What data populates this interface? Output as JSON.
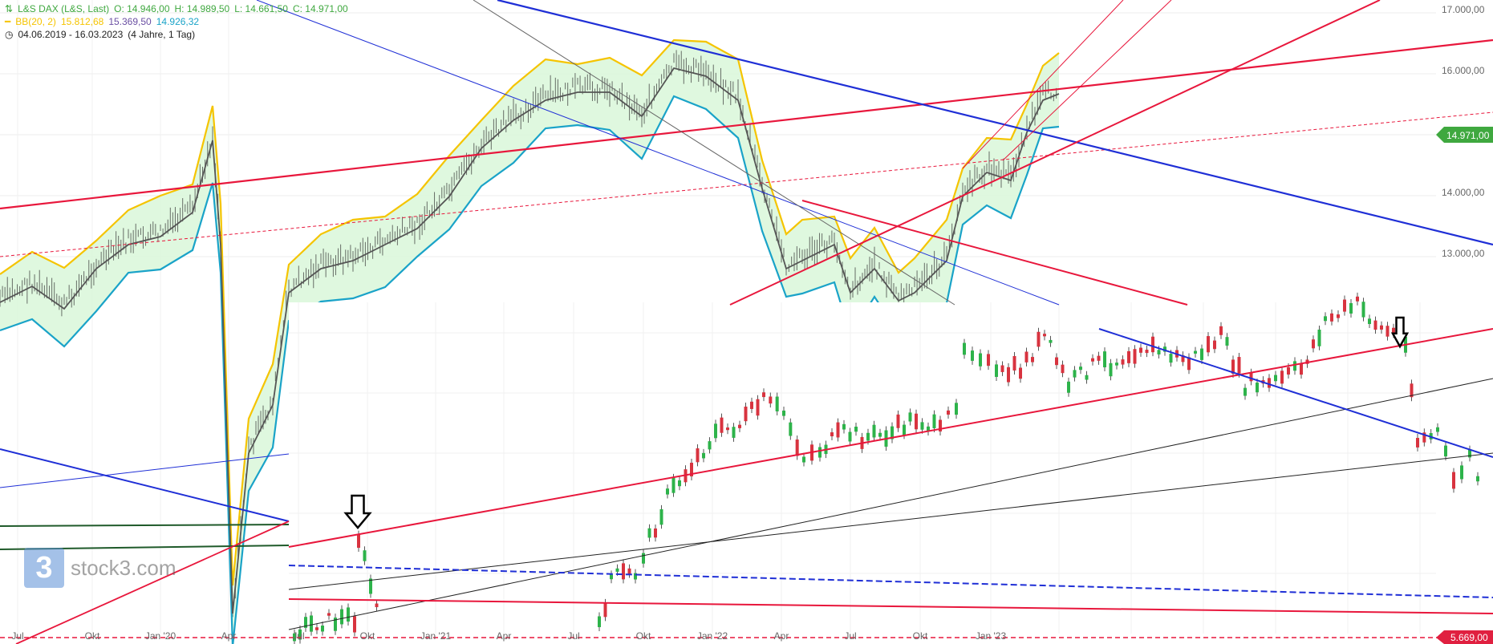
{
  "header": {
    "instrument": "L&S DAX (L&S, Last)",
    "open": "O: 14.946,00",
    "high": "H: 14.989,50",
    "low": "L: 14.661,50",
    "close": "C: 14.971,00",
    "bb_label": "BB(20, 2)",
    "bb_upper": "15.812,68",
    "bb_mid": "15.369,50",
    "bb_lower": "14.926,32",
    "date_range": "04.06.2019 - 16.03.2023",
    "period": "(4 Jahre, 1 Tag)"
  },
  "logo": {
    "glyph": "3",
    "text": "stock3.com"
  },
  "price_tags": {
    "last": "14.971,00",
    "low": "5.669,00"
  },
  "colors": {
    "support": "#e8173c",
    "resistance": "#1f2fd6",
    "bb_upper": "#f5c400",
    "bb_lower": "#1aa3c8",
    "bb_fill": "#d9f7d9",
    "mid": "#555555",
    "candle_up": "#2db34a",
    "candle_down": "#d8333f",
    "green_line": "#1f5a2a",
    "tag_green": "#3fa83f",
    "tag_red": "#e02040"
  },
  "chart_data": [
    {
      "type": "line",
      "name": "upper-chart",
      "x_ticks": [
        "Jul",
        "Okt",
        "Jan '20",
        "Apr"
      ],
      "y_ticks": [
        "17.000,00",
        "16.000,00",
        "14.000,00",
        "13.000,00"
      ],
      "ylim": [
        9000,
        17100
      ],
      "series": [
        {
          "name": "BB(20, 2)",
          "values": [
            12200,
            12500,
            12700,
            13100,
            12800,
            13300,
            13500,
            13600,
            9000,
            10500,
            11500,
            12200,
            12500,
            12800,
            13100,
            13300,
            13600,
            14200,
            15500,
            15800,
            15900,
            15700,
            15900,
            16300,
            15400,
            14000,
            13200,
            13300,
            13000,
            13700,
            15200,
            15300
          ]
        }
      ]
    },
    {
      "type": "line",
      "name": "lower-chart",
      "x_ticks": [
        "Jul",
        "Okt",
        "Jan '21",
        "Apr",
        "Jul",
        "Okt",
        "Jan '22",
        "Apr",
        "Jul",
        "Okt",
        "Jan '23"
      ],
      "ylim": [
        5600,
        10600
      ]
    }
  ]
}
